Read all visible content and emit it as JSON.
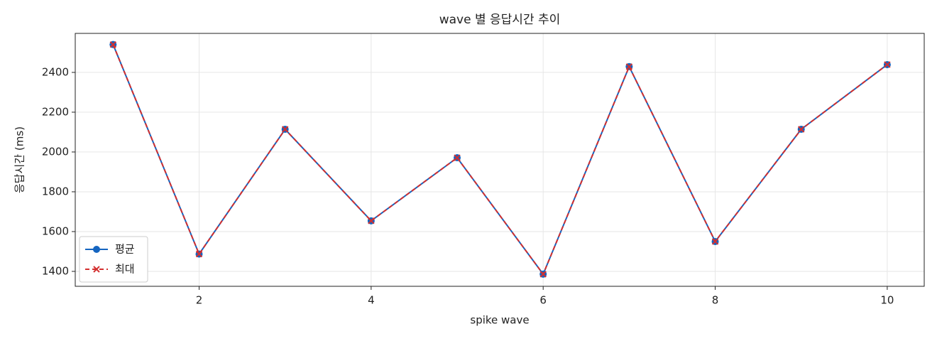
{
  "chart_data": {
    "type": "line",
    "title": "wave 별 응답시간 추이",
    "x_label": "spike wave",
    "y_label": "응답시간 (ms)",
    "x": [
      1,
      2,
      3,
      4,
      5,
      6,
      7,
      8,
      9,
      10
    ],
    "series": [
      {
        "name": "평균",
        "color": "#1565c0",
        "values": [
          2540,
          1487,
          2114,
          1654,
          1971,
          1386,
          2429,
          1550,
          2114,
          2439
        ]
      },
      {
        "name": "최대",
        "color": "#d32f2f",
        "values": [
          2540,
          1487,
          2114,
          1654,
          1971,
          1386,
          2429,
          1550,
          2114,
          2439
        ]
      }
    ],
    "xlim": [
      0.56,
      10.43
    ],
    "xticks": [
      2,
      4,
      6,
      8,
      10
    ],
    "ylim": [
      1325,
      2596
    ],
    "yticks": [
      1400,
      1600,
      1800,
      2000,
      2200,
      2400
    ],
    "grid": true,
    "legend": "lower left"
  }
}
